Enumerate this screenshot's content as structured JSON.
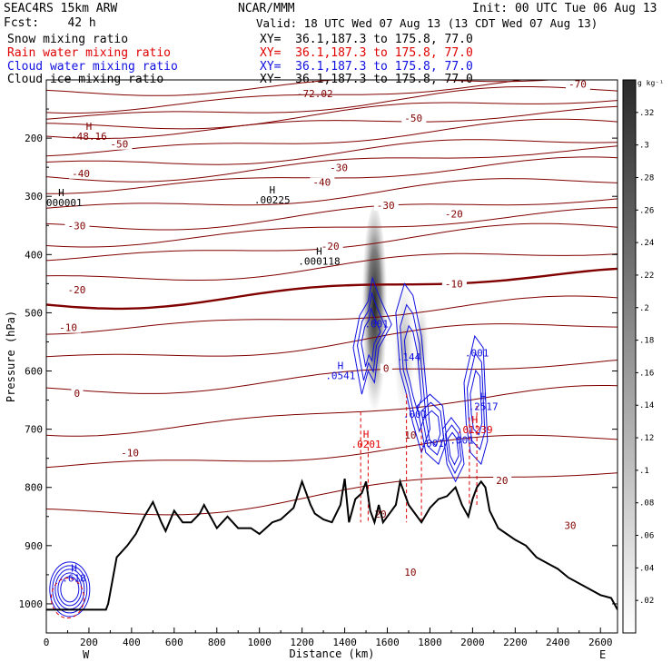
{
  "header": {
    "model": "SEAC4RS 15km ARW",
    "forecast": "Fcst:    42 h",
    "center": "NCAR/MMM",
    "init": "Init: 00 UTC Tue 06 Aug 13",
    "valid": "Valid: 18 UTC Wed 07 Aug 13 (13 CDT Wed 07 Aug 13)",
    "fields": [
      {
        "label": "Snow mixing ratio",
        "xy": "XY=  36.1,187.3 to 175.8, 77.0",
        "color": "#000000"
      },
      {
        "label": "Rain water mixing ratio",
        "xy": "XY=  36.1,187.3 to 175.8, 77.0",
        "color": "#e00000"
      },
      {
        "label": "Cloud water mixing ratio",
        "xy": "XY=  36.1,187.3 to 175.8, 77.0",
        "color": "#1010e0"
      },
      {
        "label": "Cloud ice mixing ratio",
        "xy": "XY=  36.1,187.3 to 175.8, 77.0",
        "color": "#000000"
      }
    ]
  },
  "chart_data": {
    "type": "contour",
    "xlabel": "Distance (km)",
    "ylabel": "Pressure (hPa)",
    "xlim": [
      0,
      2680
    ],
    "ylim": [
      100,
      1050
    ],
    "x_ticks": [
      0,
      200,
      400,
      600,
      800,
      1000,
      1200,
      1400,
      1600,
      1800,
      2000,
      2200,
      2400,
      2600
    ],
    "y_ticks": [
      200,
      300,
      400,
      500,
      600,
      700,
      800,
      900,
      1000
    ],
    "direction_labels": {
      "left": "W",
      "right": "E"
    },
    "colorbar": {
      "unit": "g kg⁻¹",
      "ticks": [
        ".02",
        ".04",
        ".06",
        ".08",
        ".1",
        ".12",
        ".14",
        ".16",
        ".18",
        ".2",
        ".22",
        ".24",
        ".26",
        ".28",
        ".3",
        ".32"
      ]
    },
    "colors": {
      "temperature": "#800000",
      "rain": "#e00000",
      "cloud_water": "#1010e0",
      "terrain": "#000000"
    },
    "temperature_isotherms_C": [
      {
        "value": -70,
        "label": "-70"
      },
      {
        "value": -50,
        "label": "-50"
      },
      {
        "value": -40,
        "label": "-40"
      },
      {
        "value": -30,
        "label": "-30"
      },
      {
        "value": -20,
        "label": "-20"
      },
      {
        "value": -10,
        "label": "-10"
      },
      {
        "value": 0,
        "label": "0"
      },
      {
        "value": 10,
        "label": "10"
      },
      {
        "value": 20,
        "label": "20"
      },
      {
        "value": 30,
        "label": "30"
      }
    ],
    "annotations": [
      {
        "x": 1260,
        "y": 130,
        "text": "-72.02",
        "color": "#800000"
      },
      {
        "x": 200,
        "y": 186,
        "text": "H\n-48.16",
        "color": "#800000"
      },
      {
        "x": 70,
        "y": 300,
        "text": "H\n.000001",
        "color": "#000000"
      },
      {
        "x": 1060,
        "y": 295,
        "text": "H\n.00225",
        "color": "#000000"
      },
      {
        "x": 1280,
        "y": 400,
        "text": "H\n.000118",
        "color": "#000000"
      },
      {
        "x": 1550,
        "y": 525,
        "text": ".001",
        "color": "#1010e0"
      },
      {
        "x": 1380,
        "y": 597,
        "text": "H\n.0541",
        "color": "#1010e0"
      },
      {
        "x": 1700,
        "y": 582,
        "text": ".144",
        "color": "#1010e0"
      },
      {
        "x": 2020,
        "y": 575,
        "text": ".001",
        "color": "#1010e0"
      },
      {
        "x": 2050,
        "y": 650,
        "text": "H\n.2517",
        "color": "#1010e0"
      },
      {
        "x": 1500,
        "y": 715,
        "text": "H\n.0201",
        "color": "#e00000"
      },
      {
        "x": 2010,
        "y": 690,
        "text": "H\n.01239",
        "color": "#e00000"
      },
      {
        "x": 1730,
        "y": 680,
        "text": ".001",
        "color": "#1010e0"
      },
      {
        "x": 1810,
        "y": 730,
        "text": ".001",
        "color": "#1010e0"
      },
      {
        "x": 1950,
        "y": 725,
        "text": ".001",
        "color": "#1010e0"
      },
      {
        "x": 130,
        "y": 945,
        "text": "H\n.618",
        "color": "#1010e0"
      }
    ],
    "terrain_profile": {
      "x": [
        0,
        280,
        290,
        330,
        380,
        420,
        460,
        500,
        540,
        560,
        600,
        640,
        680,
        720,
        740,
        800,
        850,
        900,
        960,
        1000,
        1060,
        1100,
        1160,
        1200,
        1240,
        1260,
        1300,
        1340,
        1380,
        1400,
        1420,
        1450,
        1480,
        1500,
        1520,
        1540,
        1560,
        1580,
        1600,
        1640,
        1660,
        1700,
        1720,
        1760,
        1800,
        1840,
        1880,
        1920,
        1950,
        1980,
        2000,
        2020,
        2040,
        2060,
        2080,
        2120,
        2160,
        2200,
        2250,
        2300,
        2350,
        2400,
        2450,
        2500,
        2550,
        2600,
        2650,
        2680
      ],
      "p": [
        1010,
        1010,
        1000,
        920,
        900,
        880,
        850,
        825,
        860,
        875,
        840,
        860,
        860,
        845,
        830,
        870,
        850,
        870,
        870,
        880,
        860,
        855,
        835,
        790,
        830,
        845,
        855,
        860,
        830,
        785,
        860,
        820,
        810,
        790,
        840,
        860,
        830,
        860,
        850,
        830,
        790,
        830,
        840,
        860,
        835,
        820,
        815,
        800,
        830,
        850,
        820,
        800,
        790,
        800,
        840,
        870,
        880,
        890,
        900,
        920,
        930,
        940,
        955,
        965,
        975,
        985,
        990,
        1010
      ]
    }
  }
}
